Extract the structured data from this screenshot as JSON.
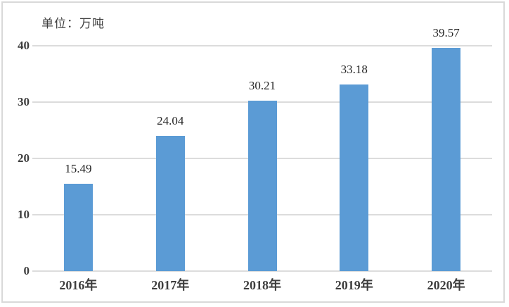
{
  "chart_data": {
    "type": "bar",
    "unit_label": "单位：万吨",
    "categories": [
      "2016年",
      "2017年",
      "2018年",
      "2019年",
      "2020年"
    ],
    "values": [
      15.49,
      24.04,
      30.21,
      33.18,
      39.57
    ],
    "data_labels": [
      "15.49",
      "24.04",
      "30.21",
      "33.18",
      "39.57"
    ],
    "yticks": [
      0,
      10,
      20,
      30,
      40
    ],
    "ylim": [
      0,
      40
    ],
    "grid": true,
    "legend": "none",
    "bar_color": "#5B9BD5",
    "gridline_color": "#DCDCDC",
    "border_color": "#D9D9D9",
    "axis_text_color": "#3D3D3D",
    "value_text_color": "#262626"
  }
}
